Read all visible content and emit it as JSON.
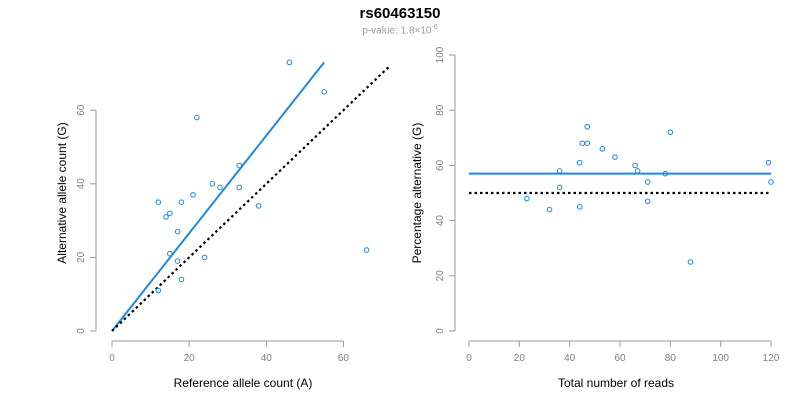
{
  "title": "rs60463150",
  "subtitle": {
    "prefix": "p-value: 1.8×10",
    "exponent": "-6"
  },
  "colors": {
    "points": "#1e88e5",
    "fit_line": "#1e88e5",
    "reference_line": "#000000",
    "axis": "#9a9a9a",
    "tick_label": "#808080",
    "axis_label": "#000000"
  },
  "chart_data": [
    {
      "type": "scatter",
      "xlabel": "Reference allele count (A)",
      "ylabel": "Alternative allele count (G)",
      "xlim": [
        0,
        70
      ],
      "ylim": [
        0,
        75
      ],
      "xticks": [
        0,
        20,
        40,
        60
      ],
      "yticks": [
        0,
        20,
        40,
        60
      ],
      "grid": false,
      "points": [
        {
          "x": 12,
          "y": 35
        },
        {
          "x": 14,
          "y": 31
        },
        {
          "x": 15,
          "y": 32
        },
        {
          "x": 15,
          "y": 21
        },
        {
          "x": 17,
          "y": 27
        },
        {
          "x": 17,
          "y": 19
        },
        {
          "x": 18,
          "y": 35
        },
        {
          "x": 18,
          "y": 14
        },
        {
          "x": 12,
          "y": 11
        },
        {
          "x": 21,
          "y": 37
        },
        {
          "x": 22,
          "y": 58
        },
        {
          "x": 24,
          "y": 20
        },
        {
          "x": 26,
          "y": 40
        },
        {
          "x": 28,
          "y": 39
        },
        {
          "x": 33,
          "y": 45
        },
        {
          "x": 33,
          "y": 39
        },
        {
          "x": 38,
          "y": 34
        },
        {
          "x": 46,
          "y": 73
        },
        {
          "x": 55,
          "y": 65
        },
        {
          "x": 66,
          "y": 22
        }
      ],
      "lines": [
        {
          "name": "fit",
          "style": "solid",
          "x": [
            0,
            55
          ],
          "y": [
            0,
            73
          ]
        },
        {
          "name": "reference",
          "style": "dotted",
          "x": [
            0,
            72
          ],
          "y": [
            0,
            72
          ]
        }
      ]
    },
    {
      "type": "scatter",
      "xlabel": "Total number of reads",
      "ylabel": "Percentage alternative (G)",
      "xlim": [
        0,
        120
      ],
      "ylim": [
        0,
        100
      ],
      "xticks": [
        0,
        20,
        40,
        60,
        80,
        100,
        120
      ],
      "yticks": [
        0,
        20,
        40,
        60,
        80,
        100
      ],
      "grid": false,
      "points": [
        {
          "x": 23,
          "y": 48
        },
        {
          "x": 32,
          "y": 44
        },
        {
          "x": 36,
          "y": 58
        },
        {
          "x": 36,
          "y": 52
        },
        {
          "x": 44,
          "y": 61
        },
        {
          "x": 44,
          "y": 45
        },
        {
          "x": 45,
          "y": 68
        },
        {
          "x": 47,
          "y": 74
        },
        {
          "x": 47,
          "y": 68
        },
        {
          "x": 53,
          "y": 66
        },
        {
          "x": 58,
          "y": 63
        },
        {
          "x": 66,
          "y": 60
        },
        {
          "x": 67,
          "y": 58
        },
        {
          "x": 71,
          "y": 54
        },
        {
          "x": 71,
          "y": 47
        },
        {
          "x": 78,
          "y": 57
        },
        {
          "x": 80,
          "y": 72
        },
        {
          "x": 88,
          "y": 25
        },
        {
          "x": 119,
          "y": 61
        },
        {
          "x": 120,
          "y": 54
        }
      ],
      "lines": [
        {
          "name": "fit",
          "style": "solid",
          "x": [
            0,
            120
          ],
          "y": [
            57,
            57
          ]
        },
        {
          "name": "reference",
          "style": "dotted",
          "x": [
            0,
            120
          ],
          "y": [
            50,
            50
          ]
        }
      ]
    }
  ]
}
